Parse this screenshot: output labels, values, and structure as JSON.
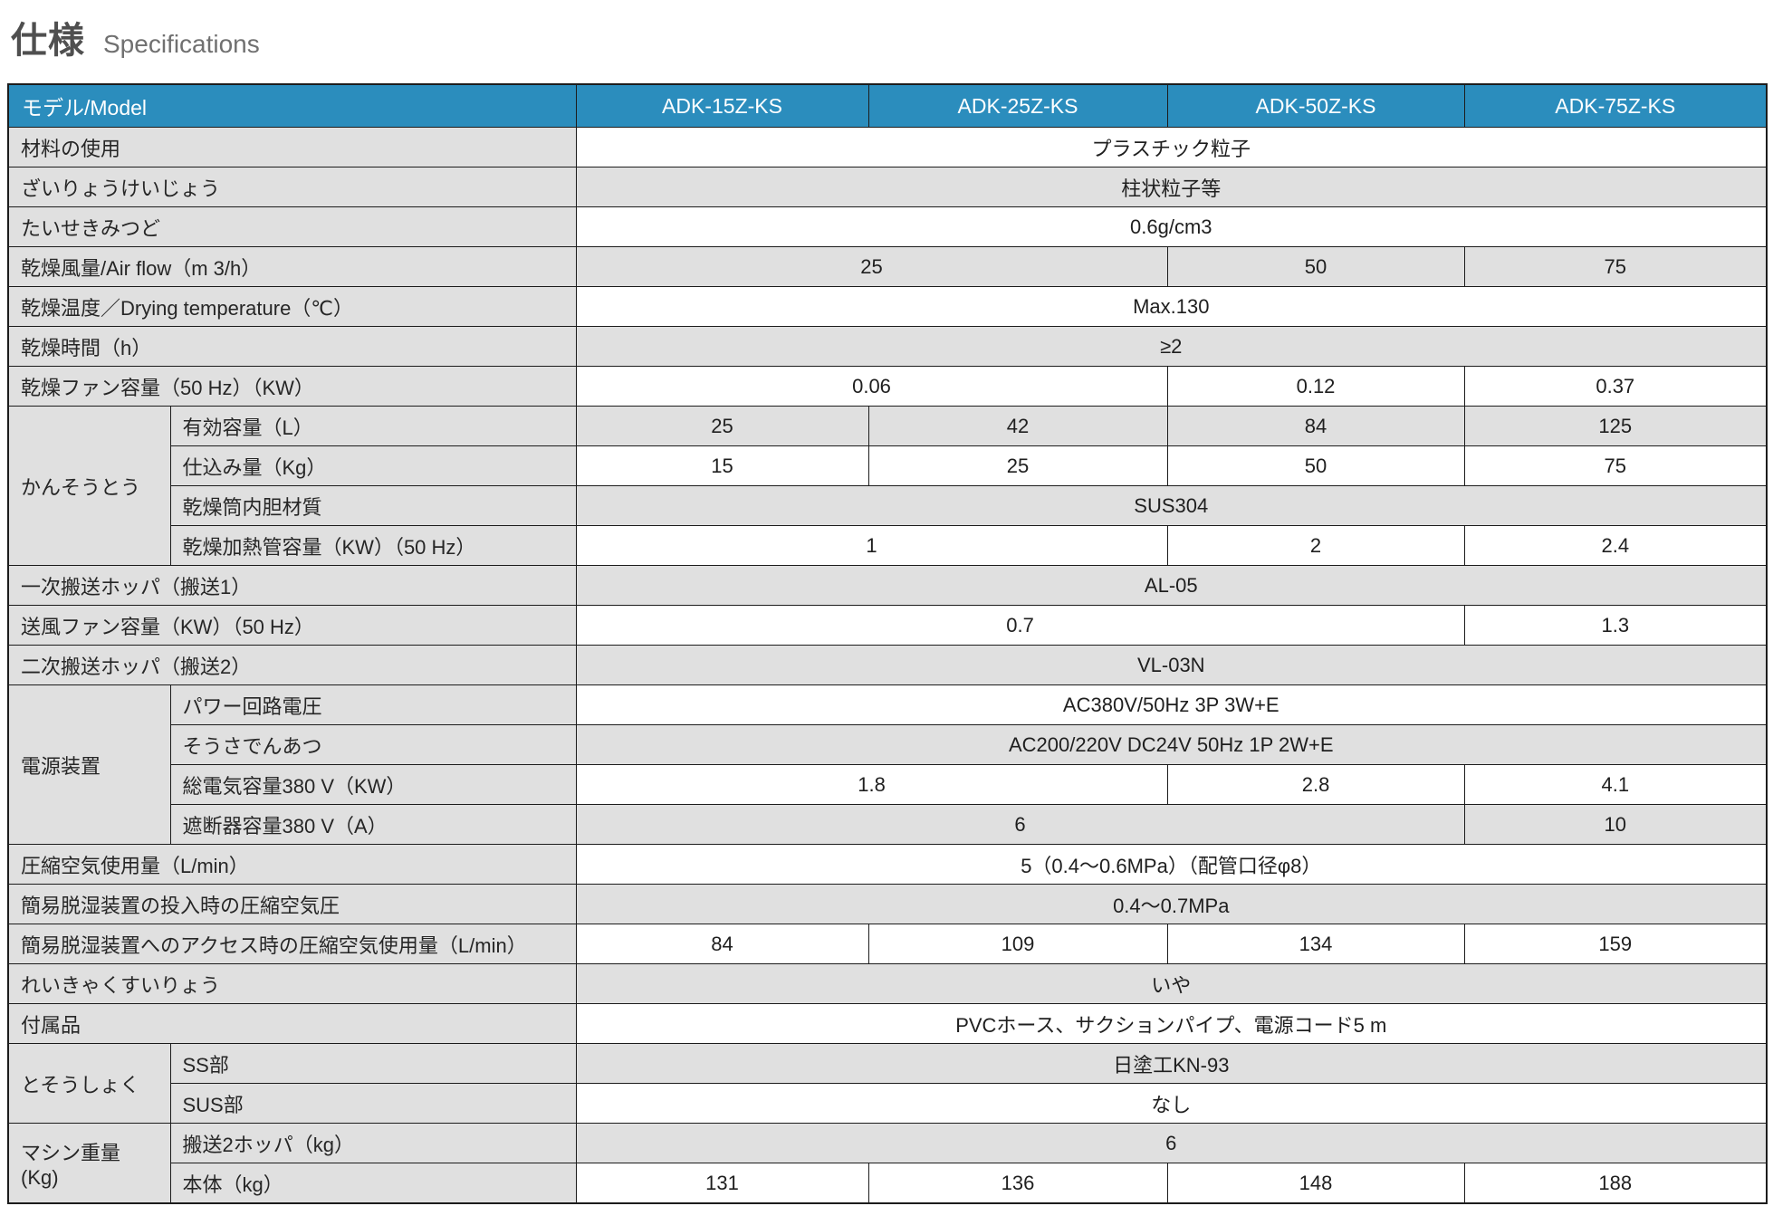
{
  "title": {
    "jp": "仕様",
    "en": "Specifications"
  },
  "colors": {
    "header_bg": "#2b8dbd",
    "header_text": "#ffffff",
    "label_bg": "#e0e0e0",
    "row_shade_bg": "#e0e0e0",
    "border": "#1c1c1c"
  },
  "table": {
    "header": {
      "model_label": "モデル/Model",
      "models": [
        "ADK-15Z-KS",
        "ADK-25Z-KS",
        "ADK-50Z-KS",
        "ADK-75Z-KS"
      ]
    },
    "rows": [
      {
        "label": "材料の使用",
        "values": [
          {
            "t": "プラスチック粒子",
            "s": 4
          }
        ]
      },
      {
        "label": "ざいりょうけいじょう",
        "values": [
          {
            "t": "柱状粒子等",
            "s": 4
          }
        ]
      },
      {
        "label": "たいせきみつど",
        "values": [
          {
            "t": "0.6g/cm3",
            "s": 4
          }
        ]
      },
      {
        "label": "乾燥風量/Air flow（m 3/h）",
        "values": [
          {
            "t": "25",
            "s": 2
          },
          {
            "t": "50",
            "s": 1
          },
          {
            "t": "75",
            "s": 1
          }
        ]
      },
      {
        "label": "乾燥温度／Drying temperature（℃）",
        "values": [
          {
            "t": "Max.130",
            "s": 4
          }
        ]
      },
      {
        "label": "乾燥時間（h）",
        "values": [
          {
            "t": "≥2",
            "s": 4
          }
        ]
      },
      {
        "label": "乾燥ファン容量（50 Hz）（KW）",
        "values": [
          {
            "t": "0.06",
            "s": 2
          },
          {
            "t": "0.12",
            "s": 1
          },
          {
            "t": "0.37",
            "s": 1
          }
        ]
      },
      {
        "group": {
          "text": "かんそうとう",
          "rows": 4
        },
        "label": "有効容量（L）",
        "values": [
          {
            "t": "25",
            "s": 1
          },
          {
            "t": "42",
            "s": 1
          },
          {
            "t": "84",
            "s": 1
          },
          {
            "t": "125",
            "s": 1
          }
        ]
      },
      {
        "sub": true,
        "label": "仕込み量（Kg）",
        "values": [
          {
            "t": "15",
            "s": 1
          },
          {
            "t": "25",
            "s": 1
          },
          {
            "t": "50",
            "s": 1
          },
          {
            "t": "75",
            "s": 1
          }
        ]
      },
      {
        "sub": true,
        "label": "乾燥筒内胆材質",
        "values": [
          {
            "t": "SUS304",
            "s": 4
          }
        ]
      },
      {
        "sub": true,
        "label": "乾燥加熱管容量（KW）（50 Hz）",
        "values": [
          {
            "t": "1",
            "s": 2
          },
          {
            "t": "2",
            "s": 1
          },
          {
            "t": "2.4",
            "s": 1
          }
        ]
      },
      {
        "label": "一次搬送ホッパ（搬送1）",
        "values": [
          {
            "t": "AL-05",
            "s": 4
          }
        ]
      },
      {
        "label": "送風ファン容量（KW）（50 Hz）",
        "values": [
          {
            "t": "0.7",
            "s": 3
          },
          {
            "t": "1.3",
            "s": 1
          }
        ]
      },
      {
        "label": "二次搬送ホッパ（搬送2）",
        "values": [
          {
            "t": "VL-03N",
            "s": 4
          }
        ]
      },
      {
        "group": {
          "text": "電源装置",
          "rows": 4
        },
        "label": "パワー回路電圧",
        "values": [
          {
            "t": "AC380V/50Hz 3P 3W+E",
            "s": 4
          }
        ]
      },
      {
        "sub": true,
        "label": "そうさでんあつ",
        "values": [
          {
            "t": "AC200/220V DC24V 50Hz 1P 2W+E",
            "s": 4
          }
        ]
      },
      {
        "sub": true,
        "label": "総電気容量380 V（KW）",
        "values": [
          {
            "t": "1.8",
            "s": 2
          },
          {
            "t": "2.8",
            "s": 1
          },
          {
            "t": "4.1",
            "s": 1
          }
        ]
      },
      {
        "sub": true,
        "label": "遮断器容量380 V（A）",
        "values": [
          {
            "t": "6",
            "s": 3
          },
          {
            "t": "10",
            "s": 1
          }
        ]
      },
      {
        "label": "圧縮空気使用量（L/min）",
        "values": [
          {
            "t": "5（0.4～0.6MPa）（配管口径φ8）",
            "s": 4
          }
        ]
      },
      {
        "label": "簡易脱湿装置の投入時の圧縮空気圧",
        "values": [
          {
            "t": "0.4～0.7MPa",
            "s": 4
          }
        ]
      },
      {
        "label": "簡易脱湿装置へのアクセス時の圧縮空気使用量（L/min）",
        "values": [
          {
            "t": "84",
            "s": 1
          },
          {
            "t": "109",
            "s": 1
          },
          {
            "t": "134",
            "s": 1
          },
          {
            "t": "159",
            "s": 1
          }
        ]
      },
      {
        "label": "れいきゃくすいりょう",
        "values": [
          {
            "t": "いや",
            "s": 4
          }
        ]
      },
      {
        "label": "付属品",
        "values": [
          {
            "t": "PVCホース、サクションパイプ、電源コード5 m",
            "s": 4
          }
        ]
      },
      {
        "group": {
          "text": "とそうしょく",
          "rows": 2
        },
        "label": "SS部",
        "values": [
          {
            "t": "日塗工KN-93",
            "s": 4
          }
        ]
      },
      {
        "sub": true,
        "label": "SUS部",
        "values": [
          {
            "t": "なし",
            "s": 4
          }
        ]
      },
      {
        "group": {
          "text": "マシン重量\n(Kg)",
          "rows": 2
        },
        "label": "搬送2ホッパ（kg）",
        "values": [
          {
            "t": "6",
            "s": 4
          }
        ]
      },
      {
        "sub": true,
        "label": "本体（kg）",
        "values": [
          {
            "t": "131",
            "s": 1
          },
          {
            "t": "136",
            "s": 1
          },
          {
            "t": "148",
            "s": 1
          },
          {
            "t": "188",
            "s": 1
          }
        ]
      }
    ]
  }
}
